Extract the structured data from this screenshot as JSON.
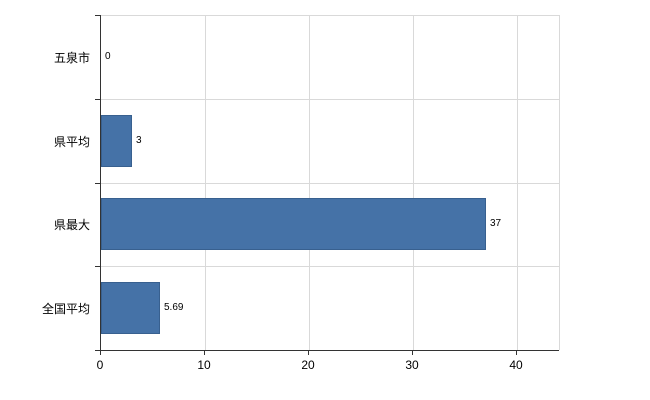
{
  "chart_data": {
    "type": "bar",
    "orientation": "horizontal",
    "title": "",
    "categories": [
      "五泉市",
      "県平均",
      "県最大",
      "全国平均"
    ],
    "values": [
      0,
      3,
      37,
      5.69
    ],
    "value_labels": [
      "0",
      "3",
      "37",
      "5.69"
    ],
    "xlim": [
      0,
      44
    ],
    "xticks": [
      0,
      10,
      20,
      30,
      40
    ],
    "grid": true,
    "legend": "none",
    "bar_color": "#4572A7",
    "bar_border_color": "#38608f",
    "gridline_color": "#d9d9d9",
    "axis_color": "#333333",
    "background_color": "#ffffff"
  }
}
